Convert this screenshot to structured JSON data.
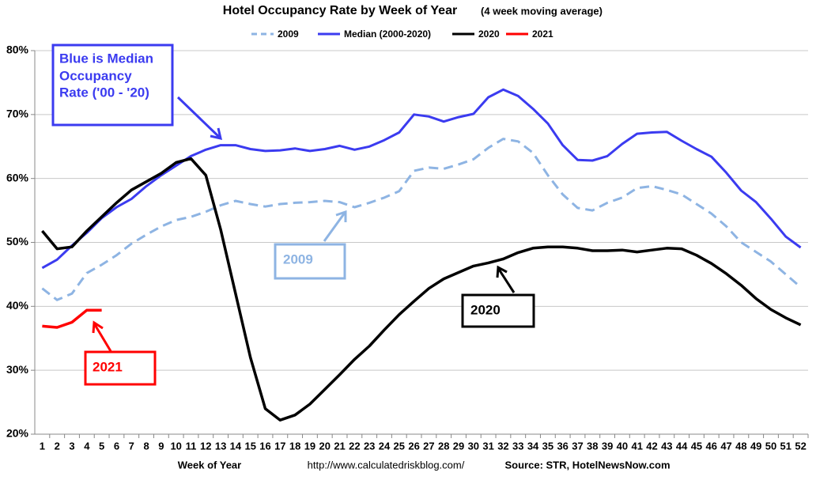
{
  "chart_data": {
    "type": "line",
    "title": "Hotel Occupancy Rate by  Week of Year",
    "subtitle": "(4 week moving average)",
    "x_label": "Week of Year",
    "footer_url": "http://www.calculatedriskblog.com/",
    "source": "Source: STR, HotelNewsNow.com",
    "categories": [
      "1",
      "2",
      "3",
      "4",
      "5",
      "6",
      "7",
      "8",
      "9",
      "10",
      "11",
      "12",
      "13",
      "14",
      "15",
      "16",
      "17",
      "18",
      "19",
      "20",
      "21",
      "22",
      "23",
      "24",
      "25",
      "26",
      "27",
      "28",
      "29",
      "30",
      "31",
      "32",
      "33",
      "34",
      "35",
      "36",
      "37",
      "38",
      "39",
      "40",
      "41",
      "42",
      "43",
      "44",
      "45",
      "46",
      "47",
      "48",
      "49",
      "50",
      "51",
      "52"
    ],
    "ylim": [
      20,
      80
    ],
    "yticks": [
      {
        "value": 20,
        "label": "20%"
      },
      {
        "value": 30,
        "label": "30%"
      },
      {
        "value": 40,
        "label": "40%"
      },
      {
        "value": 50,
        "label": "50%"
      },
      {
        "value": 60,
        "label": "60%"
      },
      {
        "value": 70,
        "label": "70%"
      },
      {
        "value": 80,
        "label": "80%"
      }
    ],
    "grid": true,
    "legend": "top",
    "series": [
      {
        "name": "2009",
        "color": "#8eb4e3",
        "dashed": true,
        "values": [
          42.8,
          41,
          42,
          45.2,
          46.5,
          48,
          49.8,
          51.2,
          52.5,
          53.5,
          54,
          54.8,
          55.8,
          56.5,
          56,
          55.6,
          56,
          56.2,
          56.3,
          56.5,
          56.3,
          55.5,
          56.2,
          57,
          58,
          61.2,
          61.7,
          61.5,
          62.2,
          63,
          64.8,
          66.2,
          65.8,
          64,
          60.5,
          57.5,
          55.4,
          55,
          56.2,
          57,
          58.5,
          58.8,
          58.2,
          57.5,
          56,
          54.5,
          52.5,
          50,
          48.5,
          47,
          45,
          43
        ]
      },
      {
        "name": "Median (2000-2020)",
        "color": "#3b3bf0",
        "values": [
          46,
          47.3,
          49.5,
          51.5,
          53.8,
          55.5,
          56.8,
          58.8,
          60.5,
          62,
          63.5,
          64.5,
          65.2,
          65.2,
          64.6,
          64.3,
          64.4,
          64.7,
          64.3,
          64.6,
          65.1,
          64.5,
          65,
          66,
          67.2,
          70,
          69.7,
          68.9,
          69.6,
          70.1,
          72.7,
          73.9,
          72.9,
          70.9,
          68.6,
          65.2,
          62.9,
          62.8,
          63.5,
          65.4,
          67,
          67.2,
          67.3,
          65.9,
          64.6,
          63.4,
          60.9,
          58.1,
          56.3,
          53.7,
          50.9,
          49.2
        ]
      },
      {
        "name": "2020",
        "color": "#000000",
        "values": [
          51.8,
          49,
          49.3,
          51.8,
          54,
          56.2,
          58.2,
          59.5,
          60.8,
          62.5,
          63.1,
          60.5,
          52,
          42,
          32,
          24,
          22.2,
          23,
          24.7,
          27,
          29.3,
          31.7,
          33.8,
          36.3,
          38.7,
          40.8,
          42.8,
          44.3,
          45.3,
          46.3,
          46.8,
          47.4,
          48.4,
          49.1,
          49.3,
          49.3,
          49.1,
          48.7,
          48.7,
          48.8,
          48.5,
          48.8,
          49.1,
          49,
          48,
          46.7,
          45.1,
          43.3,
          41.2,
          39.5,
          38.2,
          37.1
        ]
      },
      {
        "name": "2021",
        "color": "#ff0000",
        "values": [
          36.9,
          36.7,
          37.5,
          39.4,
          39.4,
          null,
          null,
          null,
          null,
          null,
          null,
          null,
          null,
          null,
          null,
          null,
          null,
          null,
          null,
          null,
          null,
          null,
          null,
          null,
          null,
          null,
          null,
          null,
          null,
          null,
          null,
          null,
          null,
          null,
          null,
          null,
          null,
          null,
          null,
          null,
          null,
          null,
          null,
          null,
          null,
          null,
          null,
          null,
          null,
          null,
          null,
          null
        ]
      }
    ],
    "annotations": [
      {
        "lines": [
          "Blue is Median",
          "Occupancy",
          "Rate ('00 - '20)"
        ]
      },
      {
        "lines": [
          "2009"
        ]
      },
      {
        "lines": [
          "2020"
        ]
      },
      {
        "lines": [
          "2021"
        ]
      }
    ]
  }
}
